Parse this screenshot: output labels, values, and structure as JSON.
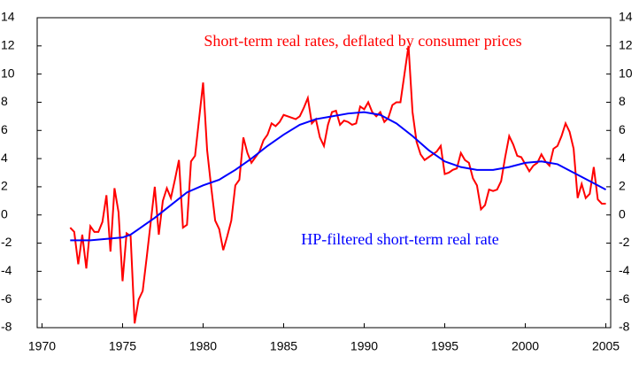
{
  "chart_data": {
    "type": "line",
    "xlim": [
      1969.7,
      2005.3
    ],
    "xticks": [
      1970,
      1975,
      1980,
      1985,
      1990,
      1995,
      2000,
      2005
    ],
    "ylim": [
      -8,
      14
    ],
    "yticks": [
      -8,
      -6,
      -4,
      -2,
      0,
      2,
      4,
      6,
      8,
      10,
      12,
      14
    ],
    "y2lim": [
      -8,
      14
    ],
    "y2ticks": [
      -8,
      -6,
      -4,
      -2,
      0,
      2,
      4,
      6,
      8,
      10,
      12,
      14
    ],
    "grid": false,
    "series": [
      {
        "name": "Short-term real rates, deflated by consumer prices",
        "color": "#ff0000",
        "x": [
          1971.75,
          1972,
          1972.25,
          1972.5,
          1972.75,
          1973,
          1973.25,
          1973.5,
          1973.75,
          1974,
          1974.25,
          1974.5,
          1974.75,
          1975,
          1975.25,
          1975.5,
          1975.75,
          1976,
          1976.25,
          1976.5,
          1976.75,
          1977,
          1977.25,
          1977.5,
          1977.75,
          1978,
          1978.25,
          1978.5,
          1978.75,
          1979,
          1979.25,
          1979.5,
          1979.75,
          1980,
          1980.25,
          1980.5,
          1980.75,
          1981,
          1981.25,
          1981.5,
          1981.75,
          1982,
          1982.25,
          1982.5,
          1982.75,
          1983,
          1983.25,
          1983.5,
          1983.75,
          1984,
          1984.25,
          1984.5,
          1984.75,
          1985,
          1985.25,
          1985.5,
          1985.75,
          1986,
          1986.25,
          1986.5,
          1986.75,
          1987,
          1987.25,
          1987.5,
          1987.75,
          1988,
          1988.25,
          1988.5,
          1988.75,
          1989,
          1989.25,
          1989.5,
          1989.75,
          1990,
          1990.25,
          1990.5,
          1990.75,
          1991,
          1991.25,
          1991.5,
          1991.75,
          1992,
          1992.25,
          1992.5,
          1992.75,
          1993,
          1993.25,
          1993.5,
          1993.75,
          1994,
          1994.25,
          1994.5,
          1994.75,
          1995,
          1995.25,
          1995.5,
          1995.75,
          1996,
          1996.25,
          1996.5,
          1996.75,
          1997,
          1997.25,
          1997.5,
          1997.75,
          1998,
          1998.25,
          1998.5,
          1998.75,
          1999,
          1999.25,
          1999.5,
          1999.75,
          2000,
          2000.25,
          2000.5,
          2000.75,
          2001,
          2001.25,
          2001.5,
          2001.75,
          2002,
          2002.25,
          2002.5,
          2002.75,
          2003,
          2003.25,
          2003.5,
          2003.75,
          2004,
          2004.25,
          2004.5,
          2004.75,
          2005
        ],
        "values": [
          -0.9,
          -1.2,
          -3.5,
          -1.4,
          -3.8,
          -0.8,
          -1.2,
          -1.2,
          -0.5,
          1.4,
          -2.6,
          1.9,
          0.2,
          -4.7,
          -1.3,
          -1.5,
          -7.7,
          -6.0,
          -5.4,
          -3.0,
          -0.5,
          2.0,
          -1.4,
          1.0,
          1.9,
          1.2,
          2.5,
          3.9,
          -0.9,
          -0.7,
          3.8,
          4.2,
          6.8,
          9.4,
          4.6,
          2.0,
          -0.4,
          -1.0,
          -2.5,
          -1.5,
          -0.4,
          2.1,
          2.5,
          5.5,
          4.4,
          3.7,
          4.1,
          4.5,
          5.3,
          5.7,
          6.5,
          6.3,
          6.6,
          7.1,
          7.0,
          6.9,
          6.8,
          7.0,
          7.6,
          8.3,
          6.5,
          6.8,
          5.5,
          4.9,
          6.4,
          7.3,
          7.4,
          6.4,
          6.7,
          6.6,
          6.4,
          6.5,
          7.7,
          7.5,
          8.0,
          7.3,
          7.0,
          7.3,
          6.6,
          6.9,
          7.8,
          8.0,
          8.0,
          10.0,
          12.0,
          7.3,
          5.2,
          4.3,
          3.9,
          4.1,
          4.3,
          4.5,
          4.9,
          2.9,
          3.0,
          3.2,
          3.3,
          4.4,
          3.9,
          3.7,
          2.6,
          2.1,
          0.4,
          0.7,
          1.8,
          1.7,
          1.8,
          2.4,
          4.1,
          5.6,
          5.0,
          4.2,
          4.1,
          3.6,
          3.1,
          3.5,
          3.7,
          4.3,
          3.8,
          3.5,
          4.7,
          4.9,
          5.6,
          6.5,
          5.9,
          4.7,
          1.2,
          2.2,
          1.2,
          1.5,
          3.4,
          1.1,
          0.8,
          0.8
        ]
      },
      {
        "name": "HP-filtered short-term real rate",
        "color": "#0000ff",
        "x": [
          1971.75,
          1973,
          1974,
          1975,
          1975.5,
          1976,
          1977,
          1978,
          1979,
          1980,
          1981,
          1982,
          1983,
          1984,
          1985,
          1986,
          1987,
          1988,
          1989,
          1990,
          1991,
          1992,
          1993,
          1994,
          1995,
          1996,
          1997,
          1998,
          1999,
          2000,
          2001,
          2002,
          2003,
          2004,
          2005
        ],
        "values": [
          -1.8,
          -1.8,
          -1.7,
          -1.6,
          -1.4,
          -1.0,
          -0.2,
          0.7,
          1.6,
          2.1,
          2.5,
          3.2,
          4.0,
          4.9,
          5.7,
          6.4,
          6.8,
          7.0,
          7.2,
          7.3,
          7.1,
          6.5,
          5.6,
          4.6,
          3.8,
          3.4,
          3.2,
          3.2,
          3.4,
          3.7,
          3.8,
          3.6,
          3.0,
          2.4,
          1.8
        ]
      }
    ]
  }
}
